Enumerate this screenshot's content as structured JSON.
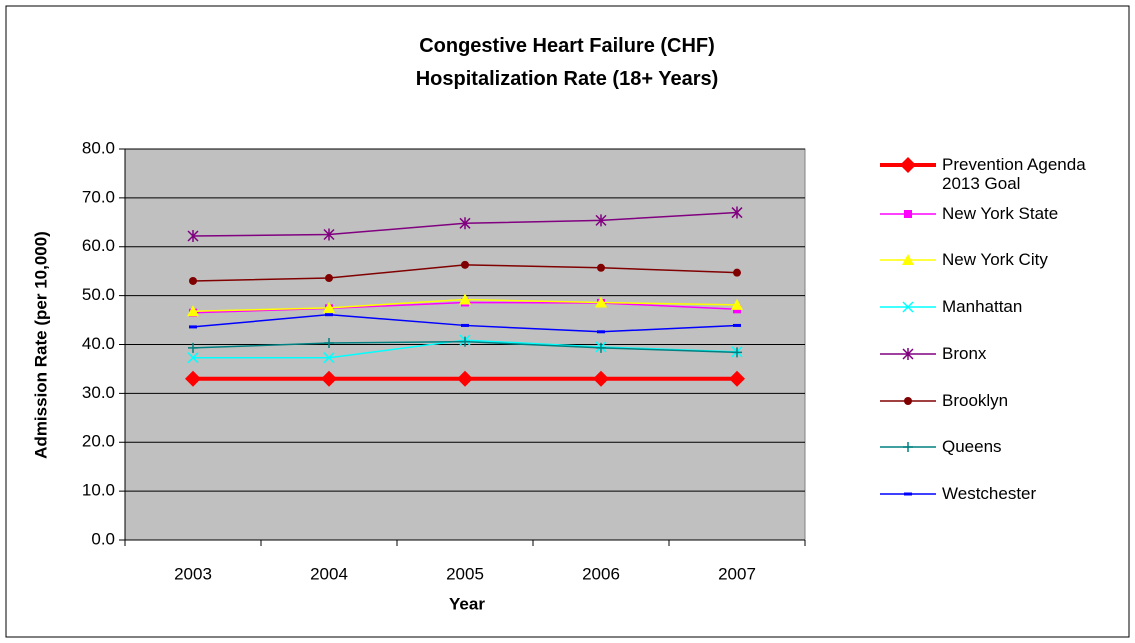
{
  "chart_data": {
    "type": "line",
    "title": "Congestive Heart Failure (CHF) Hospitalization Rate (18+ Years)",
    "x_label": "Year",
    "y_label": "Admission Rate (per 10,000)",
    "categories": [
      "2003",
      "2004",
      "2005",
      "2006",
      "2007"
    ],
    "ylim": [
      0,
      80
    ],
    "yticks": [
      {
        "value": 0,
        "label": "0.0"
      },
      {
        "value": 10,
        "label": "10.0"
      },
      {
        "value": 20,
        "label": "20.0"
      },
      {
        "value": 30,
        "label": "30.0"
      },
      {
        "value": 40,
        "label": "40.0"
      },
      {
        "value": 50,
        "label": "50.0"
      },
      {
        "value": 60,
        "label": "60.0"
      },
      {
        "value": 70,
        "label": "70.0"
      },
      {
        "value": 80,
        "label": "80.0"
      }
    ],
    "grid": true,
    "legend": "right",
    "series": [
      {
        "name": "Prevention Agenda 2013 Goal",
        "color": "#ff0000",
        "marker": "diamond",
        "line_width": 4,
        "values": [
          33.0,
          33.0,
          33.0,
          33.0,
          33.0
        ]
      },
      {
        "name": "New York State",
        "color": "#ff00ff",
        "marker": "square",
        "line_width": 1.5,
        "values": [
          46.5,
          47.4,
          48.6,
          48.5,
          47.2
        ]
      },
      {
        "name": "New York City",
        "color": "#ffff00",
        "marker": "triangle",
        "line_width": 1.5,
        "values": [
          46.8,
          47.5,
          49.2,
          48.6,
          48.1
        ]
      },
      {
        "name": "Manhattan",
        "color": "#00ffff",
        "marker": "x",
        "line_width": 1.5,
        "values": [
          37.3,
          37.3,
          40.9,
          39.5,
          38.5
        ]
      },
      {
        "name": "Bronx",
        "color": "#800080",
        "marker": "asterisk",
        "line_width": 1.5,
        "values": [
          62.2,
          62.5,
          64.8,
          65.4,
          67.0
        ]
      },
      {
        "name": "Brooklyn",
        "color": "#800000",
        "marker": "circle",
        "line_width": 1.5,
        "values": [
          53.0,
          53.6,
          56.3,
          55.7,
          54.7
        ]
      },
      {
        "name": "Queens",
        "color": "#008080",
        "marker": "plus",
        "line_width": 1.5,
        "values": [
          39.3,
          40.3,
          40.6,
          39.3,
          38.4
        ]
      },
      {
        "name": "Westchester",
        "color": "#0000ff",
        "marker": "dash",
        "line_width": 1.5,
        "values": [
          43.6,
          46.1,
          43.9,
          42.6,
          43.9
        ]
      }
    ]
  }
}
